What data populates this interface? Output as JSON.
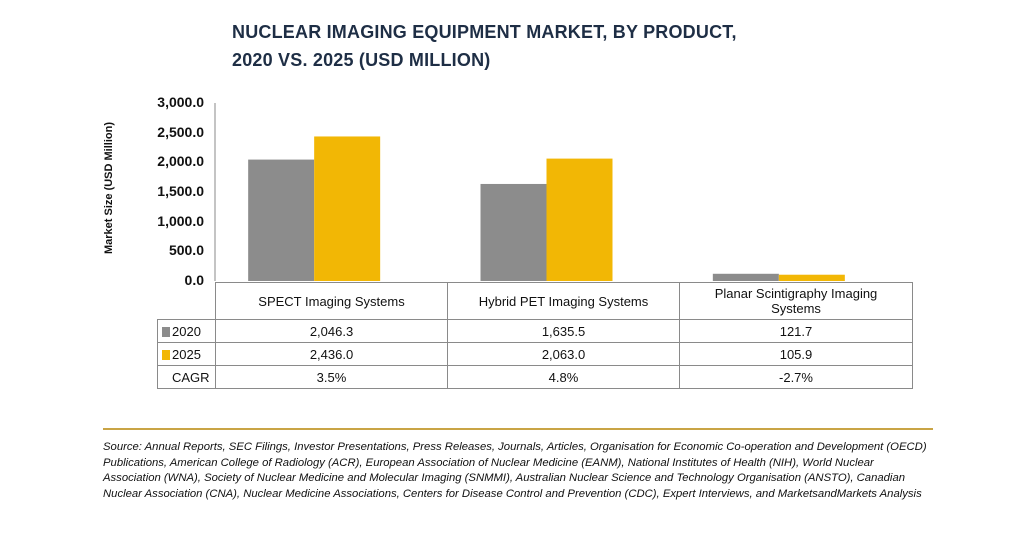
{
  "title_line1": "NUCLEAR IMAGING EQUIPMENT MARKET, BY PRODUCT,",
  "title_line2": "2020 VS. 2025 (USD MILLION)",
  "source": "Source: Annual Reports, SEC Filings, Investor Presentations, Press Releases, Journals, Articles, Organisation for Economic Co-operation and Development (OECD) Publications, American College of Radiology (ACR), European Association of Nuclear Medicine (EANM), National Institutes of Health (NIH), World Nuclear Association (WNA), Society of Nuclear Medicine and Molecular Imaging (SNMMI), Australian Nuclear Science and Technology Organisation (ANSTO), Canadian Nuclear Association (CNA), Nuclear Medicine Associations, Centers for Disease Control and Prevention (CDC), Expert Interviews, and MarketsandMarkets Analysis",
  "table": {
    "rows": [
      {
        "label": "2020",
        "swatch": "#8c8c8c",
        "cells": [
          "2,046.3",
          "1,635.5",
          "121.7"
        ]
      },
      {
        "label": "2025",
        "swatch": "#f2b705",
        "cells": [
          "2,436.0",
          "2,063.0",
          "105.9"
        ]
      },
      {
        "label": "CAGR",
        "swatch": "",
        "cells": [
          "3.5%",
          "4.8%",
          "-2.7%"
        ]
      }
    ]
  },
  "chart_data": {
    "type": "bar",
    "title": "NUCLEAR IMAGING EQUIPMENT MARKET, BY PRODUCT, 2020 VS. 2025 (USD MILLION)",
    "xlabel": "",
    "ylabel": "Market Size (USD Million)",
    "ylim": [
      0,
      3000
    ],
    "yticks": [
      "0.0",
      "500.0",
      "1,000.0",
      "1,500.0",
      "2,000.0",
      "2,500.0",
      "3,000.0"
    ],
    "categories": [
      "SPECT Imaging Systems",
      "Hybrid PET Imaging Systems",
      "Planar Scintigraphy Imaging Systems"
    ],
    "series": [
      {
        "name": "2020",
        "color": "#8c8c8c",
        "values": [
          2046.3,
          1635.5,
          121.7
        ]
      },
      {
        "name": "2025",
        "color": "#f2b705",
        "values": [
          2436.0,
          2063.0,
          105.9
        ]
      }
    ],
    "cagr": [
      "3.5%",
      "4.8%",
      "-2.7%"
    ],
    "grid": false,
    "legend": "data-table"
  }
}
